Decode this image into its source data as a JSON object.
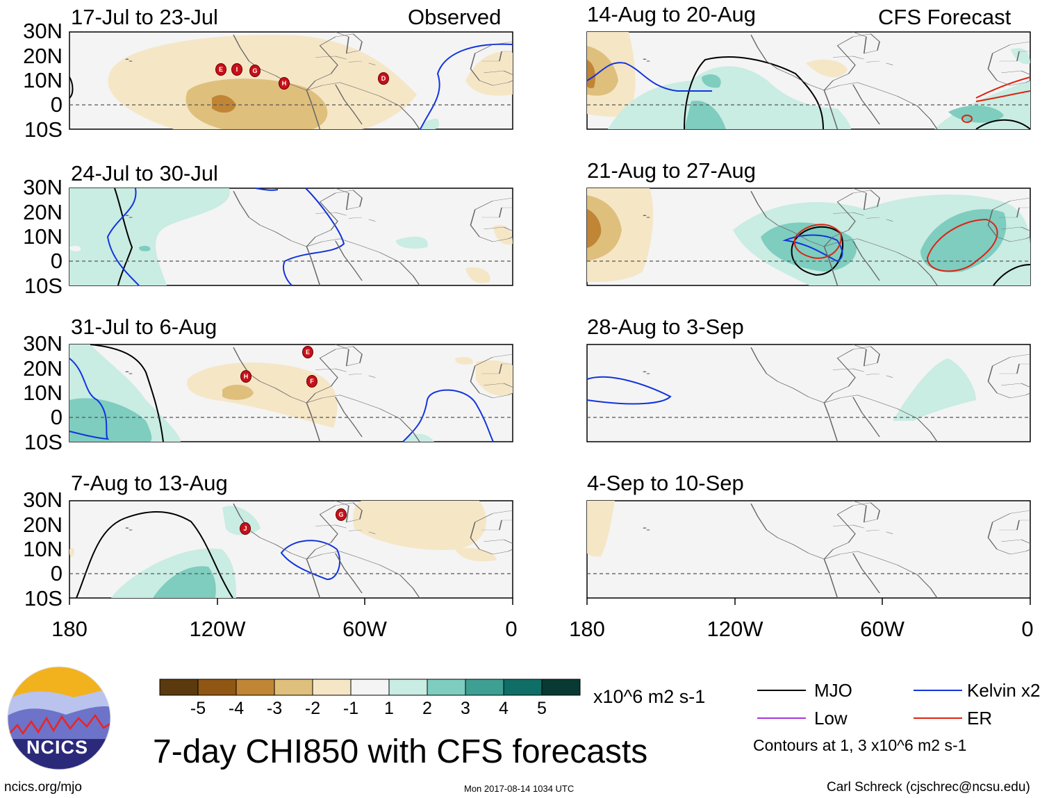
{
  "figure": {
    "title": "7-day CHI850 with CFS forecasts",
    "observed_label": "Observed",
    "forecast_label": "CFS Forecast",
    "site_url": "ncics.org/mjo",
    "timestamp": "Mon 2017-08-14 1034 UTC",
    "author": "Carl Schreck (cjschrec@ncsu.edu)",
    "logo_text": "NCICS"
  },
  "axes": {
    "lat_labels": [
      "30N",
      "20N",
      "10N",
      "0",
      "10S"
    ],
    "lon_labels": [
      "180",
      "120W",
      "60W",
      "0"
    ]
  },
  "panels": [
    {
      "id": "p1",
      "title": "17-Jul to 23-Jul",
      "column": "observed",
      "storms": [
        "E",
        "I",
        "G",
        "H",
        "D"
      ]
    },
    {
      "id": "p2",
      "title": "24-Jul to 30-Jul",
      "column": "observed",
      "storms": []
    },
    {
      "id": "p3",
      "title": "31-Jul to 6-Aug",
      "column": "observed",
      "storms": [
        "E",
        "H",
        "F"
      ]
    },
    {
      "id": "p4",
      "title": "7-Aug to 13-Aug",
      "column": "observed",
      "storms": [
        "J",
        "G"
      ]
    },
    {
      "id": "p5",
      "title": "14-Aug to 20-Aug",
      "column": "forecast",
      "storms": []
    },
    {
      "id": "p6",
      "title": "21-Aug to 27-Aug",
      "column": "forecast",
      "storms": []
    },
    {
      "id": "p7",
      "title": "28-Aug to 3-Sep",
      "column": "forecast",
      "storms": []
    },
    {
      "id": "p8",
      "title": "4-Sep to 10-Sep",
      "column": "forecast",
      "storms": []
    }
  ],
  "colorbar": {
    "unit": "x10^6 m2 s-1",
    "ticks": [
      "-5",
      "-4",
      "-3",
      "-2",
      "-1",
      "1",
      "2",
      "3",
      "4",
      "5"
    ],
    "colors": [
      "#5a3a0e",
      "#8f5713",
      "#c08535",
      "#dfbf7c",
      "#f5e6c6",
      "#f4f4f4",
      "#c9ece3",
      "#7ecdbf",
      "#3e9f93",
      "#0f6e65",
      "#083a33"
    ]
  },
  "legend": {
    "items": [
      {
        "label": "MJO",
        "color": "#000000"
      },
      {
        "label": "Kelvin x2",
        "color": "#1133dd"
      },
      {
        "label": "Low",
        "color": "#aa33dd"
      },
      {
        "label": "ER",
        "color": "#dd2211"
      }
    ],
    "note": "Contours at 1, 3 x10^6 m2 s-1"
  },
  "chart_data": {
    "type": "map",
    "title": "7-day CHI850 with CFS forecasts",
    "variable": "CHI850 anomaly (x10^6 m2 s-1)",
    "domain": {
      "lon_range": [
        "180",
        "0"
      ],
      "lat_range": [
        "10S",
        "30N"
      ]
    },
    "contour_levels": [
      1,
      3
    ],
    "shading_levels": [
      -5,
      -4,
      -3,
      -2,
      -1,
      1,
      2,
      3,
      4,
      5
    ],
    "storm_markers": {
      "17-Jul to 23-Jul": [
        "E",
        "I",
        "G",
        "H",
        "D"
      ],
      "31-Jul to 6-Aug": [
        "E",
        "H",
        "F"
      ],
      "7-Aug to 13-Aug": [
        "J",
        "G"
      ]
    }
  }
}
